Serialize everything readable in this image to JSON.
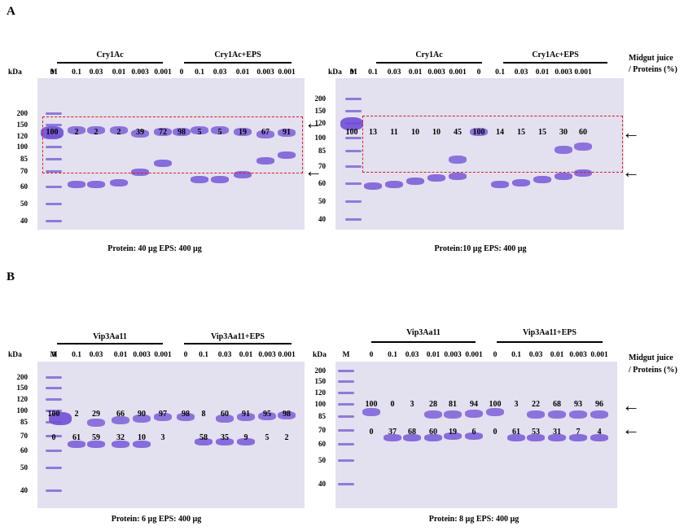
{
  "section_a": "A",
  "section_b": "B",
  "kda": "kDa",
  "marker": "M",
  "midgut": [
    "Midgut juice",
    "/ Proteins (%)"
  ],
  "panels": [
    {
      "id": "A-left",
      "group1": "Cry1Ac",
      "group2": "Cry1Ac+EPS",
      "lanes": [
        "0",
        "0.1",
        "0.03",
        "0.01",
        "0.003",
        "0.001",
        "0",
        "0.1",
        "0.03",
        "0.01",
        "0.003",
        "0.001"
      ],
      "ladder": [
        "200",
        "150",
        "120",
        "100",
        "85",
        "70",
        "60",
        "50",
        "40"
      ],
      "top_values": [
        "100",
        "2",
        "2",
        "2",
        "39",
        "72",
        "98",
        "5",
        "5",
        "19",
        "67",
        "91"
      ],
      "bottom_values": [],
      "caption": "Protein: 40 µg  EPS: 400 µg"
    },
    {
      "id": "A-right",
      "group1": "Cry1Ac",
      "group2": "Cry1Ac+EPS",
      "lanes": [
        "0",
        "0.1",
        "0.03",
        "0.01",
        "0.003",
        "0.001",
        "0",
        "0.1",
        "0.03",
        "0.01",
        "0.003",
        "0.001"
      ],
      "ladder": [
        "200",
        "150",
        "120",
        "100",
        "85",
        "70",
        "60",
        "50",
        "40"
      ],
      "top_values": [
        "100",
        "13",
        "11",
        "10",
        "10",
        "45",
        "100",
        "14",
        "15",
        "15",
        "30",
        "60"
      ],
      "bottom_values": [],
      "caption": "Protein:10 µg  EPS: 400 µg"
    },
    {
      "id": "B-left",
      "group1": "Vip3Aa11",
      "group2": "Vip3Aa11+EPS",
      "lanes": [
        "0",
        "0.1",
        "0.03",
        "0.01",
        "0.003",
        "0.001",
        "0",
        "0.1",
        "0.03",
        "0.01",
        "0.003",
        "0.001"
      ],
      "ladder": [
        "200",
        "150",
        "120",
        "100",
        "85",
        "70",
        "60",
        "50",
        "40"
      ],
      "top_values": [
        "100",
        "2",
        "29",
        "66",
        "90",
        "97",
        "98",
        "8",
        "60",
        "91",
        "95",
        "98"
      ],
      "bottom_values": [
        "0",
        "61",
        "59",
        "32",
        "10",
        "3",
        "",
        "58",
        "35",
        "9",
        "5",
        "2"
      ],
      "caption": "Protein: 6 µg  EPS: 400 µg"
    },
    {
      "id": "B-right",
      "group1": "Vip3Aa11",
      "group2": "Vip3Aa11+EPS",
      "lanes": [
        "0",
        "0.1",
        "0.03",
        "0.01",
        "0.003",
        "0.001",
        "0",
        "0.1",
        "0.03",
        "0.01",
        "0.003",
        "0.001"
      ],
      "ladder": [
        "200",
        "150",
        "120",
        "100",
        "85",
        "70",
        "60",
        "50",
        "40"
      ],
      "top_values": [
        "100",
        "0",
        "3",
        "28",
        "81",
        "94",
        "100",
        "3",
        "22",
        "68",
        "93",
        "96"
      ],
      "bottom_values": [
        "0",
        "37",
        "68",
        "60",
        "19",
        "6",
        "0",
        "61",
        "53",
        "31",
        "7",
        "4"
      ],
      "caption": "Protein: 8 µg  EPS: 400 µg"
    }
  ],
  "colors": {
    "gel_bg": "#e3e0f0",
    "band": "#6f4fd6",
    "ladder_band": "#8f7ad8",
    "box": "#e01a1a"
  }
}
